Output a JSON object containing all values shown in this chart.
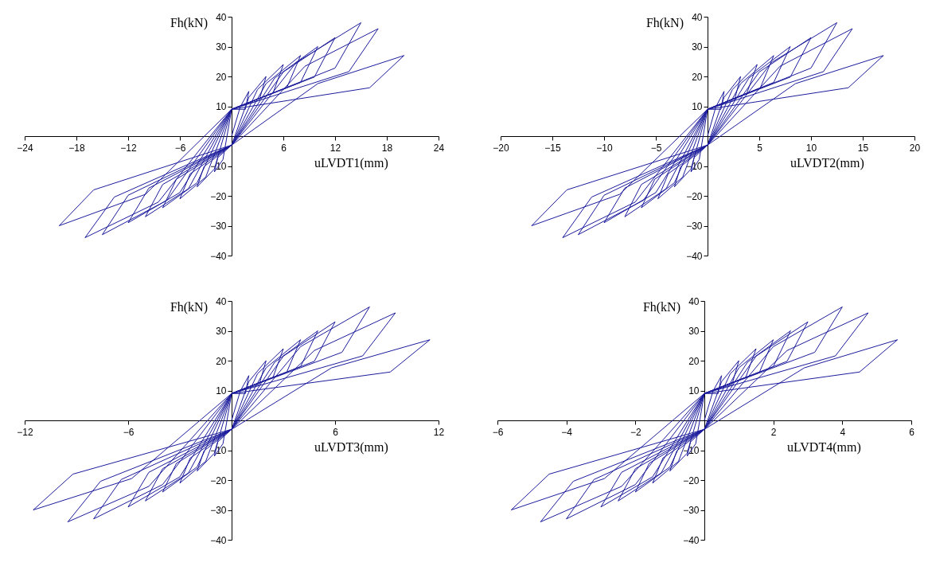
{
  "chart_data": [
    {
      "type": "line",
      "xlabel": "uLVDT1(mm)",
      "ylabel": "Fh(kN)",
      "color": "#1c1c9c",
      "xlim": [
        -24,
        24
      ],
      "ylim": [
        -40,
        40
      ],
      "xticks": [
        -24,
        -18,
        -12,
        -6,
        6,
        12,
        18,
        24
      ],
      "yticks": [
        -40,
        -30,
        -20,
        -10,
        10,
        20,
        30,
        40
      ],
      "x": [
        0,
        1,
        2,
        1.6,
        0,
        -1,
        -2,
        -1.6,
        0,
        2,
        4,
        3.2,
        0,
        -2,
        -4,
        -3.2,
        0,
        3,
        6,
        4.8,
        0,
        -3,
        -6,
        -4.8,
        0,
        4,
        8,
        6.4,
        0,
        -4,
        -8,
        -6.4,
        0,
        5,
        10,
        8,
        0,
        -5,
        -10,
        -8,
        0,
        6,
        12,
        9.6,
        0,
        -6,
        -12,
        -9.6,
        0,
        7.5,
        15,
        12,
        0,
        -7.5,
        -15,
        -12,
        0,
        8.5,
        17,
        13.6,
        0,
        -8.5,
        -17,
        -13.6,
        0,
        10,
        20,
        16,
        0,
        -10,
        -20,
        -16,
        0
      ],
      "values": [
        0,
        9.8,
        15,
        9,
        9,
        -7.8,
        -12,
        -7.2,
        -3,
        13,
        20,
        12,
        9,
        -11,
        -17,
        -10.2,
        -3,
        15.6,
        24,
        14.4,
        9,
        -13.7,
        -21,
        -12.6,
        -3,
        17.6,
        27,
        16.2,
        9,
        -15.6,
        -24,
        -14.4,
        -3,
        19.5,
        30,
        18,
        9,
        -17.6,
        -27,
        -16.2,
        -3,
        21.5,
        33,
        19.8,
        9,
        -18.9,
        -29,
        -17.4,
        -3,
        24.7,
        38,
        22.8,
        9,
        -21.5,
        -33,
        -19.8,
        -3,
        23.4,
        36,
        21.6,
        9,
        -22.1,
        -34,
        -20.4,
        -3,
        17.6,
        27,
        16.2,
        9,
        -19.5,
        -30,
        -18,
        -3
      ]
    },
    {
      "type": "line",
      "xlabel": "uLVDT2(mm)",
      "ylabel": "Fh(kN)",
      "color": "#1c1c9c",
      "xlim": [
        -20,
        20
      ],
      "ylim": [
        -40,
        40
      ],
      "xticks": [
        -20,
        -15,
        -10,
        -5,
        5,
        10,
        15,
        20
      ],
      "yticks": [
        -40,
        -30,
        -20,
        -10,
        10,
        20,
        30,
        40
      ],
      "x": [
        0,
        0.8,
        1.6,
        1.3,
        0,
        -0.8,
        -1.6,
        -1.3,
        0,
        1.6,
        3.2,
        2.6,
        0,
        -1.6,
        -3.2,
        -2.6,
        0,
        2.4,
        4.8,
        3.8,
        0,
        -2.4,
        -4.8,
        -3.8,
        0,
        3.2,
        6.4,
        5.1,
        0,
        -3.2,
        -6.4,
        -5.1,
        0,
        4,
        8,
        6.4,
        0,
        -4,
        -8,
        -6.4,
        0,
        5,
        10,
        8,
        0,
        -5,
        -10,
        -8,
        0,
        6.2,
        12.5,
        10,
        0,
        -6.2,
        -12.5,
        -10,
        0,
        7,
        14,
        11.2,
        0,
        -7,
        -14,
        -11.2,
        0,
        8.5,
        17,
        13.6,
        0,
        -8.5,
        -17,
        -13.6,
        0
      ],
      "values": [
        0,
        9.8,
        15,
        9,
        9,
        -7.8,
        -12,
        -7.2,
        -3,
        13,
        20,
        12,
        9,
        -11,
        -17,
        -10.2,
        -3,
        15.6,
        24,
        14.4,
        9,
        -13.7,
        -21,
        -12.6,
        -3,
        17.6,
        27,
        16.2,
        9,
        -15.6,
        -24,
        -14.4,
        -3,
        19.5,
        30,
        18,
        9,
        -17.6,
        -27,
        -16.2,
        -3,
        21.5,
        33,
        19.8,
        9,
        -18.9,
        -29,
        -17.4,
        -3,
        24.7,
        38,
        22.8,
        9,
        -21.5,
        -33,
        -19.8,
        -3,
        23.4,
        36,
        21.6,
        9,
        -22.1,
        -34,
        -20.4,
        -3,
        17.6,
        27,
        16.2,
        9,
        -19.5,
        -30,
        -18,
        -3
      ]
    },
    {
      "type": "line",
      "xlabel": "uLVDT3(mm)",
      "ylabel": "Fh(kN)",
      "color": "#1c1c9c",
      "xlim": [
        -12,
        12
      ],
      "ylim": [
        -40,
        40
      ],
      "xticks": [
        -12,
        -6,
        6,
        12
      ],
      "yticks": [
        -40,
        -30,
        -20,
        -10,
        10,
        20,
        30,
        40
      ],
      "x": [
        0,
        0.5,
        1,
        0.8,
        0,
        -0.5,
        -1,
        -0.8,
        0,
        1,
        2,
        1.6,
        0,
        -1,
        -2,
        -1.6,
        0,
        1.5,
        3,
        2.4,
        0,
        -1.5,
        -3,
        -2.4,
        0,
        2,
        4,
        3.2,
        0,
        -2,
        -4,
        -3.2,
        0,
        2.5,
        5,
        4,
        0,
        -2.5,
        -5,
        -4,
        0,
        3,
        6,
        4.8,
        0,
        -3,
        -6,
        -4.8,
        0,
        4,
        8,
        6.4,
        0,
        -4,
        -8,
        -6.4,
        0,
        4.8,
        9.5,
        7.6,
        0,
        -4.8,
        -9.5,
        -7.6,
        0,
        5.8,
        11.5,
        9.2,
        0,
        -5.8,
        -11.5,
        -9.2,
        0
      ],
      "values": [
        0,
        9.8,
        15,
        9,
        9,
        -7.8,
        -12,
        -7.2,
        -3,
        13,
        20,
        12,
        9,
        -11,
        -17,
        -10.2,
        -3,
        15.6,
        24,
        14.4,
        9,
        -13.7,
        -21,
        -12.6,
        -3,
        17.6,
        27,
        16.2,
        9,
        -15.6,
        -24,
        -14.4,
        -3,
        19.5,
        30,
        18,
        9,
        -17.6,
        -27,
        -16.2,
        -3,
        21.5,
        33,
        19.8,
        9,
        -18.9,
        -29,
        -17.4,
        -3,
        24.7,
        38,
        22.8,
        9,
        -21.5,
        -33,
        -19.8,
        -3,
        23.4,
        36,
        21.6,
        9,
        -22.1,
        -34,
        -20.4,
        -3,
        17.6,
        27,
        16.2,
        9,
        -19.5,
        -30,
        -18,
        -3
      ]
    },
    {
      "type": "line",
      "xlabel": "uLVDT4(mm)",
      "ylabel": "Fh(kN)",
      "color": "#1c1c9c",
      "xlim": [
        -6,
        6
      ],
      "ylim": [
        -40,
        40
      ],
      "xticks": [
        -6,
        -4,
        -2,
        2,
        4,
        6
      ],
      "yticks": [
        -40,
        -30,
        -20,
        -10,
        10,
        20,
        30,
        40
      ],
      "x": [
        0,
        0.25,
        0.5,
        0.4,
        0,
        -0.25,
        -0.5,
        -0.4,
        0,
        0.5,
        1,
        0.8,
        0,
        -0.5,
        -1,
        -0.8,
        0,
        0.75,
        1.5,
        1.2,
        0,
        -0.75,
        -1.5,
        -1.2,
        0,
        1,
        2,
        1.6,
        0,
        -1,
        -2,
        -1.6,
        0,
        1.25,
        2.5,
        2,
        0,
        -1.25,
        -2.5,
        -2,
        0,
        1.5,
        3,
        2.4,
        0,
        -1.5,
        -3,
        -2.4,
        0,
        2,
        4,
        3.2,
        0,
        -2,
        -4,
        -3.2,
        0,
        2.4,
        4.75,
        3.8,
        0,
        -2.4,
        -4.75,
        -3.8,
        0,
        2.9,
        5.6,
        4.5,
        0,
        -2.9,
        -5.6,
        -4.5,
        0
      ],
      "values": [
        0,
        9.8,
        15,
        9,
        9,
        -7.8,
        -12,
        -7.2,
        -3,
        13,
        20,
        12,
        9,
        -11,
        -17,
        -10.2,
        -3,
        15.6,
        24,
        14.4,
        9,
        -13.7,
        -21,
        -12.6,
        -3,
        17.6,
        27,
        16.2,
        9,
        -15.6,
        -24,
        -14.4,
        -3,
        19.5,
        30,
        18,
        9,
        -17.6,
        -27,
        -16.2,
        -3,
        21.5,
        33,
        19.8,
        9,
        -18.9,
        -29,
        -17.4,
        -3,
        24.7,
        38,
        22.8,
        9,
        -21.5,
        -33,
        -19.8,
        -3,
        23.4,
        36,
        21.6,
        9,
        -22.1,
        -34,
        -20.4,
        -3,
        17.6,
        27,
        16.2,
        9,
        -19.5,
        -30,
        -18,
        -3
      ]
    }
  ]
}
